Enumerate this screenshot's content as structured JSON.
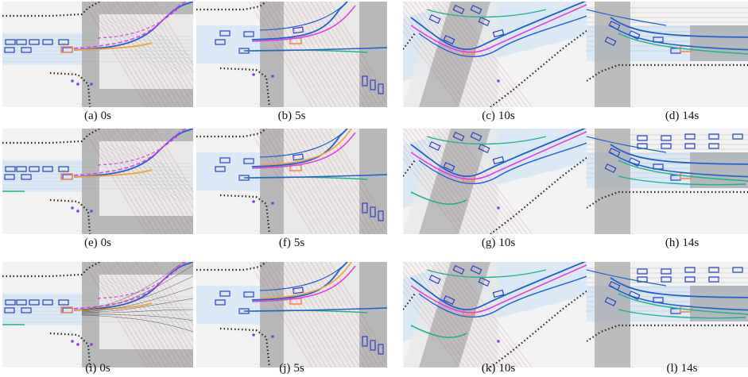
{
  "figure": {
    "panels": [
      {
        "label": "(a)",
        "time": "0s",
        "view": "A",
        "row": 0,
        "col": 0
      },
      {
        "label": "(b)",
        "time": "5s",
        "view": "B",
        "row": 0,
        "col": 1
      },
      {
        "label": "(c)",
        "time": "10s",
        "view": "C",
        "row": 0,
        "col": 2
      },
      {
        "label": "(d)",
        "time": "14s",
        "view": "D",
        "row": 0,
        "col": 3
      },
      {
        "label": "(e)",
        "time": "0s",
        "view": "A",
        "row": 1,
        "col": 0
      },
      {
        "label": "(f)",
        "time": "5s",
        "view": "B",
        "row": 1,
        "col": 1
      },
      {
        "label": "(g)",
        "time": "10s",
        "view": "C",
        "row": 1,
        "col": 2
      },
      {
        "label": "(h)",
        "time": "14s",
        "view": "D",
        "row": 1,
        "col": 3
      },
      {
        "label": "(i)",
        "time": "0s",
        "view": "A",
        "row": 2,
        "col": 0
      },
      {
        "label": "(j)",
        "time": "5s",
        "view": "B",
        "row": 2,
        "col": 1
      },
      {
        "label": "(k)",
        "time": "10s",
        "view": "C",
        "row": 2,
        "col": 2
      },
      {
        "label": "(l)",
        "time": "14s",
        "view": "D",
        "row": 2,
        "col": 3
      }
    ]
  },
  "colors": {
    "road": "#e9e9e9",
    "lane": "#dbe9f6",
    "crosswalk": "#8f8f8f",
    "curb": "#222222",
    "vehicle": "#2a3fc6",
    "trajectory_blue": "#1f5fd1",
    "trajectory_teal": "#1fb38a",
    "trajectory_magenta": "#e63ee0",
    "trajectory_orange": "#f2a23a",
    "ego": "#f08a5d",
    "pedestrian": "#8a3ad6"
  }
}
